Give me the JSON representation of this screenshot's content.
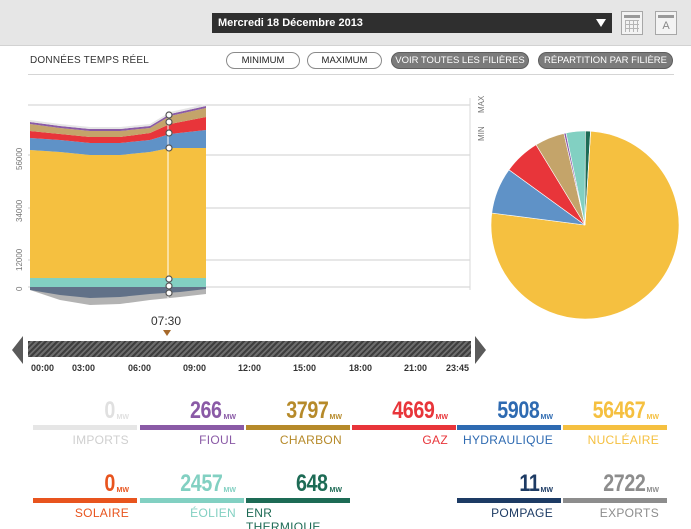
{
  "header": {
    "date": "Mercredi 18 Décembre 2013",
    "calendar_icon": "calendar-icon",
    "a_icon_letter": "A"
  },
  "controls": {
    "realtime_label": "DONNÉES TEMPS RÉEL",
    "minimum": "MINIMUM",
    "maximum": "MAXIMUM",
    "all_sources": "VOIR TOUTES LES FILIÈRES",
    "split_by_source": "RÉPARTITION PAR FILIÈRE"
  },
  "chart": {
    "y_ticks": [
      "56000",
      "34000",
      "12000",
      "0"
    ],
    "right_labels": [
      "MAX",
      "MIN"
    ],
    "x_ticks": [
      "00:00",
      "03:00",
      "06:00",
      "09:00",
      "12:00",
      "15:00",
      "18:00",
      "21:00",
      "23:45"
    ],
    "cursor_time": "07:30"
  },
  "colors": {
    "imports": "#d8d8d8",
    "fioul": "#8a5aa6",
    "charbon": "#b68a2a",
    "gaz": "#e8353a",
    "hydraulique": "#2e6ab1",
    "nucleaire": "#f5c040",
    "solaire": "#e8541e",
    "eolien": "#82d0c2",
    "enr_thermique": "#1d6b55",
    "pompage": "#1d3b64",
    "exports": "#8d8d8d"
  },
  "stats_row1": [
    {
      "key": "imports",
      "value": "0",
      "unit": "MW",
      "label": "IMPORTS"
    },
    {
      "key": "fioul",
      "value": "266",
      "unit": "MW",
      "label": "FIOUL"
    },
    {
      "key": "charbon",
      "value": "3797",
      "unit": "MW",
      "label": "CHARBON"
    },
    {
      "key": "gaz",
      "value": "4669",
      "unit": "MW",
      "label": "GAZ"
    },
    {
      "key": "hydraulique",
      "value": "5908",
      "unit": "MW",
      "label": "HYDRAULIQUE"
    },
    {
      "key": "nucleaire",
      "value": "56467",
      "unit": "MW",
      "label": "NUCLÉAIRE"
    }
  ],
  "stats_row2": [
    {
      "key": "solaire",
      "value": "0",
      "unit": "MW",
      "label": "SOLAIRE"
    },
    {
      "key": "eolien",
      "value": "2457",
      "unit": "MW",
      "label": "ÉOLIEN"
    },
    {
      "key": "enr_thermique",
      "value": "648",
      "unit": "MW",
      "label": "ENR THERMIQUE"
    },
    {
      "key": "pompage",
      "value": "11",
      "unit": "MW",
      "label": "POMPAGE"
    },
    {
      "key": "exports",
      "value": "2722",
      "unit": "MW",
      "label": "EXPORTS"
    }
  ],
  "pie": [
    {
      "key": "nucleaire",
      "value": 56467
    },
    {
      "key": "hydraulique",
      "value": 5908
    },
    {
      "key": "gaz",
      "value": 4669
    },
    {
      "key": "charbon",
      "value": 3797
    },
    {
      "key": "fioul",
      "value": 266
    },
    {
      "key": "eolien",
      "value": 2457
    },
    {
      "key": "enr_thermique",
      "value": 648
    },
    {
      "key": "pompage",
      "value": 11
    }
  ]
}
